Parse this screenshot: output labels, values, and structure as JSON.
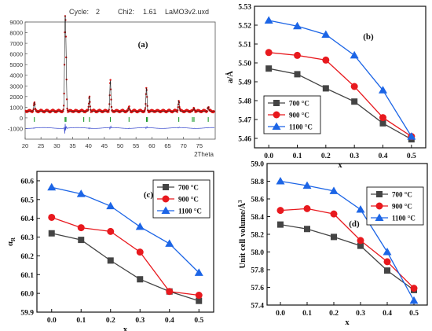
{
  "chart_data": [
    {
      "type": "scatter",
      "panel_label": "(a)",
      "header": {
        "cycle_label": "Cycle:",
        "cycle_value": "2",
        "chi2_label": "Chi2:",
        "chi2_value": "1.61",
        "file": "LaMO3v2.uxd"
      },
      "xlabel": "2Theta",
      "ylabel": "",
      "xlim": [
        20,
        80
      ],
      "ylim": [
        -2000,
        9000
      ],
      "x_ticks": [
        20,
        25,
        30,
        35,
        40,
        45,
        50,
        55,
        60,
        65,
        70,
        75
      ],
      "y_ticks": [
        -1000,
        0,
        1000,
        2000,
        3000,
        4000,
        5000,
        6000,
        7000,
        8000,
        9000
      ],
      "baseline": 640,
      "difference_offset": -950,
      "bragg_row": -150,
      "peaks": [
        {
          "x": 22.9,
          "y": 1450
        },
        {
          "x": 32.6,
          "y": 8400
        },
        {
          "x": 32.9,
          "y": 5200
        },
        {
          "x": 40.3,
          "y": 2000
        },
        {
          "x": 46.9,
          "y": 3500
        },
        {
          "x": 52.8,
          "y": 1000
        },
        {
          "x": 58.3,
          "y": 2800
        },
        {
          "x": 68.5,
          "y": 1600
        },
        {
          "x": 73.3,
          "y": 900
        },
        {
          "x": 77.8,
          "y": 1050
        }
      ],
      "bragg_positions": [
        22.9,
        32.6,
        32.9,
        38.5,
        40.3,
        46.9,
        52.8,
        58.3,
        58.6,
        68.5,
        72.8,
        73.3,
        77.8
      ]
    },
    {
      "type": "line",
      "panel_label": "(b)",
      "xlabel": "x",
      "ylabel": "a/Å",
      "xlim": [
        -0.05,
        0.55
      ],
      "ylim": [
        5.455,
        5.53
      ],
      "x_ticks": [
        "0.0",
        "0.1",
        "0.2",
        "0.3",
        "0.4",
        "0.5"
      ],
      "y_ticks": [
        "5.46",
        "5.47",
        "5.48",
        "5.49",
        "5.50",
        "5.51",
        "5.52",
        "5.53"
      ],
      "x": [
        0.0,
        0.1,
        0.2,
        0.3,
        0.4,
        0.5
      ],
      "legend_position": "lower-left",
      "series": [
        {
          "name": "700  °C",
          "marker": "square",
          "color": "#444444",
          "values": [
            5.497,
            5.494,
            5.4865,
            5.4795,
            5.468,
            5.4595
          ]
        },
        {
          "name": "900  °C",
          "marker": "circle",
          "color": "#e8191e",
          "values": [
            5.5055,
            5.504,
            5.5015,
            5.4875,
            5.471,
            5.461
          ]
        },
        {
          "name": "1100  °C",
          "marker": "triangle",
          "color": "#1c65e6",
          "values": [
            5.5225,
            5.5195,
            5.515,
            5.504,
            5.4855,
            5.461
          ]
        }
      ]
    },
    {
      "type": "line",
      "panel_label": "(c)",
      "xlabel": "x",
      "ylabel": "α",
      "ylabel_sub": "R",
      "xlim": [
        -0.05,
        0.55
      ],
      "ylim": [
        59.9,
        60.65
      ],
      "x_ticks": [
        "0.0",
        "0.1",
        "0.2",
        "0.3",
        "0.4",
        "0.5"
      ],
      "y_ticks": [
        "59.9",
        "60.0",
        "60.1",
        "60.2",
        "60.3",
        "60.4",
        "60.5",
        "60.6"
      ],
      "x": [
        0.0,
        0.1,
        0.2,
        0.3,
        0.4,
        0.5
      ],
      "legend_position": "top-right",
      "series": [
        {
          "name": "700  °C",
          "marker": "square",
          "color": "#444444",
          "values": [
            60.32,
            60.285,
            60.175,
            60.075,
            60.01,
            59.96
          ]
        },
        {
          "name": "900  °C",
          "marker": "circle",
          "color": "#e8191e",
          "values": [
            60.405,
            60.35,
            60.33,
            60.22,
            60.01,
            59.99
          ]
        },
        {
          "name": "1100  °C",
          "marker": "triangle",
          "color": "#1c65e6",
          "values": [
            60.565,
            60.53,
            60.465,
            60.355,
            60.265,
            60.11
          ]
        }
      ]
    },
    {
      "type": "line",
      "panel_label": "(d)",
      "xlabel": "x",
      "ylabel": "Unit cell volume/Å",
      "ylabel_sup": "3",
      "xlim": [
        -0.05,
        0.55
      ],
      "ylim": [
        57.4,
        59.0
      ],
      "x_ticks": [
        "0.0",
        "0.1",
        "0.2",
        "0.3",
        "0.4",
        "0.5"
      ],
      "y_ticks": [
        "57.4",
        "57.6",
        "57.8",
        "58.0",
        "58.2",
        "58.4",
        "58.6",
        "58.8",
        "59.0"
      ],
      "x": [
        0.0,
        0.1,
        0.2,
        0.3,
        0.4,
        0.5
      ],
      "legend_position": "top-right",
      "series": [
        {
          "name": "700  °C",
          "marker": "square",
          "color": "#444444",
          "values": [
            58.31,
            58.26,
            58.17,
            58.07,
            57.79,
            57.57
          ]
        },
        {
          "name": "900  °C",
          "marker": "circle",
          "color": "#e8191e",
          "values": [
            58.47,
            58.49,
            58.43,
            58.13,
            57.89,
            57.59
          ]
        },
        {
          "name": "1100  °C",
          "marker": "triangle",
          "color": "#1c65e6",
          "values": [
            58.8,
            58.75,
            58.69,
            58.48,
            58.0,
            57.45
          ]
        }
      ]
    }
  ]
}
